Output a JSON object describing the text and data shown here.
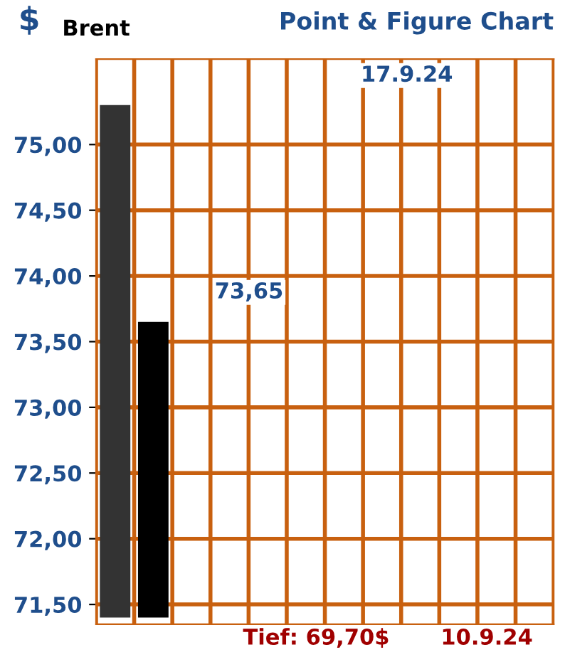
{
  "chart_data": {
    "type": "bar",
    "title": "Point & Figure Chart",
    "subtitle": "Brent",
    "ylabel": "$",
    "categories": [
      null,
      null,
      null,
      null,
      null,
      null,
      null,
      null,
      null,
      null,
      null,
      null
    ],
    "values": [
      3.9,
      2.25,
      null,
      null,
      null,
      null,
      null,
      null,
      null,
      null,
      null,
      null
    ],
    "base": [
      71.4,
      71.4,
      null,
      null,
      null,
      null,
      null,
      null,
      null,
      null,
      null,
      null
    ],
    "colors": [
      "#333333",
      "#000000",
      null,
      null,
      null,
      null,
      null,
      null,
      null,
      null,
      null,
      null
    ],
    "ylim": [
      71.35,
      75.65
    ],
    "yticks": [
      {
        "value": 71.5,
        "label": "71,50"
      },
      {
        "value": 72.0,
        "label": "72,00"
      },
      {
        "value": 72.5,
        "label": "72,50"
      },
      {
        "value": 73.0,
        "label": "73,00"
      },
      {
        "value": 73.5,
        "label": "73,50"
      },
      {
        "value": 74.0,
        "label": "74,00"
      },
      {
        "value": 74.5,
        "label": "74,50"
      },
      {
        "value": 75.0,
        "label": "75,00"
      }
    ],
    "grid": true,
    "annotations": [
      "17.9.24",
      "73,65",
      "Tief: 69,70$",
      "10.9.24"
    ]
  }
}
